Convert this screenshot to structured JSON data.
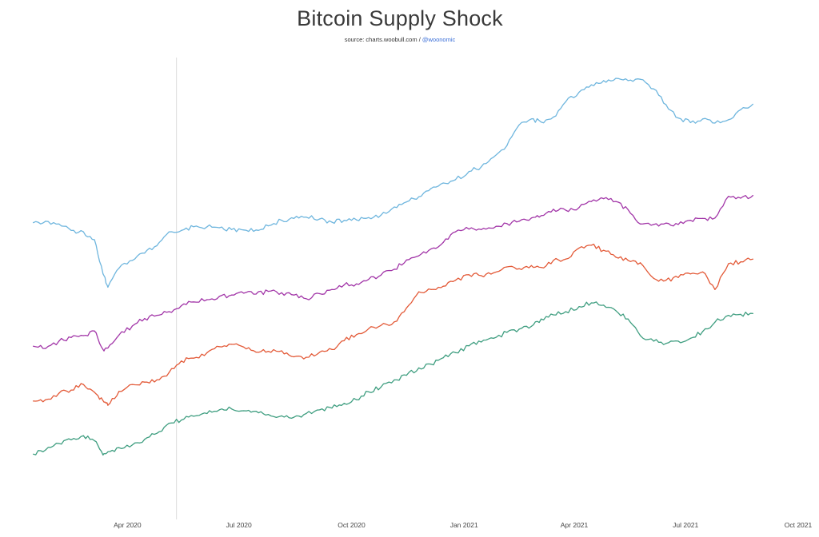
{
  "chart_data": {
    "type": "line",
    "title": "Bitcoin Supply Shock",
    "subtitle_source": "source: charts.woobull.com /",
    "subtitle_handle": "@woonomic",
    "xlabel": "",
    "ylabel": "",
    "grid": false,
    "legend": "none",
    "x_ticks": [
      "Apr 2020",
      "Jul 2020",
      "Oct 2020",
      "Jan 2021",
      "Apr 2021",
      "Jul 2021",
      "Oct 2021"
    ],
    "x_range": [
      "2020-01-12",
      "2021-10-01"
    ],
    "y_range": [
      0,
      100
    ],
    "marker_line_x": "2020-05-11",
    "series": [
      {
        "color": "#6fb6de",
        "x": [
          "2020-01-15",
          "2020-01-25",
          "2020-02-05",
          "2020-02-15",
          "2020-02-25",
          "2020-03-05",
          "2020-03-12",
          "2020-03-16",
          "2020-03-25",
          "2020-04-05",
          "2020-04-15",
          "2020-04-25",
          "2020-05-05",
          "2020-05-15",
          "2020-05-25",
          "2020-06-05",
          "2020-06-15",
          "2020-06-25",
          "2020-07-05",
          "2020-07-15",
          "2020-07-25",
          "2020-08-05",
          "2020-08-15",
          "2020-08-25",
          "2020-09-05",
          "2020-09-15",
          "2020-09-25",
          "2020-10-05",
          "2020-10-15",
          "2020-10-25",
          "2020-11-05",
          "2020-11-15",
          "2020-11-25",
          "2020-12-05",
          "2020-12-15",
          "2020-12-25",
          "2021-01-05",
          "2021-01-15",
          "2021-01-25",
          "2021-02-05",
          "2021-02-15",
          "2021-02-25",
          "2021-03-05",
          "2021-03-15",
          "2021-03-25",
          "2021-04-05",
          "2021-04-15",
          "2021-04-25",
          "2021-05-05",
          "2021-05-15",
          "2021-05-25",
          "2021-06-05",
          "2021-06-15",
          "2021-06-25",
          "2021-07-05",
          "2021-07-15",
          "2021-07-25",
          "2021-08-05",
          "2021-08-15",
          "2021-08-25"
        ],
        "values": [
          63.5,
          63.8,
          63.2,
          61.8,
          61.5,
          59.8,
          52.4,
          49.5,
          53.6,
          55.3,
          56.9,
          58.5,
          61.5,
          61.8,
          62.6,
          62.6,
          62.4,
          62.0,
          61.9,
          61.9,
          62.8,
          64.0,
          64.4,
          64.7,
          64.3,
          63.6,
          64.0,
          64.1,
          64.6,
          65.1,
          66.9,
          68.0,
          69.1,
          70.9,
          72.1,
          72.8,
          74.6,
          75.6,
          77.7,
          80.2,
          84.7,
          86.0,
          85.3,
          86.4,
          89.7,
          91.8,
          93.4,
          94.3,
          94.8,
          94.3,
          94.6,
          92.5,
          89.1,
          86.2,
          85.2,
          86.0,
          85.1,
          85.8,
          88.0,
          89.2
        ]
      },
      {
        "color": "#a236a8",
        "x": [
          "2020-01-15",
          "2020-01-25",
          "2020-02-05",
          "2020-02-15",
          "2020-02-25",
          "2020-03-05",
          "2020-03-12",
          "2020-03-16",
          "2020-03-25",
          "2020-04-05",
          "2020-04-15",
          "2020-04-25",
          "2020-05-05",
          "2020-05-15",
          "2020-05-25",
          "2020-06-05",
          "2020-06-15",
          "2020-06-25",
          "2020-07-05",
          "2020-07-15",
          "2020-07-25",
          "2020-08-05",
          "2020-08-15",
          "2020-08-25",
          "2020-09-05",
          "2020-09-15",
          "2020-09-25",
          "2020-10-05",
          "2020-10-15",
          "2020-10-25",
          "2020-11-05",
          "2020-11-15",
          "2020-11-25",
          "2020-12-05",
          "2020-12-15",
          "2020-12-25",
          "2021-01-05",
          "2021-01-15",
          "2021-01-25",
          "2021-02-05",
          "2021-02-15",
          "2021-02-25",
          "2021-03-05",
          "2021-03-15",
          "2021-03-25",
          "2021-04-05",
          "2021-04-15",
          "2021-04-25",
          "2021-05-05",
          "2021-05-15",
          "2021-05-25",
          "2021-06-05",
          "2021-06-15",
          "2021-06-25",
          "2021-07-05",
          "2021-07-15",
          "2021-07-25",
          "2021-08-05",
          "2021-08-15",
          "2021-08-25"
        ],
        "values": [
          36.7,
          36.2,
          37.8,
          38.6,
          39.0,
          40.0,
          36.0,
          36.3,
          39.1,
          41.1,
          42.7,
          43.4,
          44.2,
          45.5,
          46.3,
          46.8,
          47.5,
          47.8,
          48.2,
          48.0,
          48.6,
          48.3,
          47.8,
          47.0,
          48.1,
          49.0,
          50.0,
          50.2,
          51.2,
          52.1,
          53.4,
          55.4,
          56.3,
          57.8,
          59.2,
          61.5,
          62.1,
          62.0,
          62.3,
          63.3,
          63.8,
          64.5,
          65.0,
          66.4,
          66.2,
          66.8,
          68.1,
          68.7,
          68.1,
          66.3,
          63.2,
          63.1,
          63.4,
          63.1,
          64.0,
          64.4,
          64.5,
          69.2,
          68.8,
          69.4
        ]
      },
      {
        "color": "#e35a38",
        "x": [
          "2020-01-15",
          "2020-01-25",
          "2020-02-05",
          "2020-02-15",
          "2020-02-25",
          "2020-03-05",
          "2020-03-12",
          "2020-03-16",
          "2020-03-25",
          "2020-04-05",
          "2020-04-15",
          "2020-04-25",
          "2020-05-05",
          "2020-05-15",
          "2020-05-25",
          "2020-06-05",
          "2020-06-15",
          "2020-06-25",
          "2020-07-05",
          "2020-07-15",
          "2020-07-25",
          "2020-08-05",
          "2020-08-15",
          "2020-08-25",
          "2020-09-05",
          "2020-09-15",
          "2020-09-25",
          "2020-10-05",
          "2020-10-15",
          "2020-10-25",
          "2020-11-05",
          "2020-11-15",
          "2020-11-25",
          "2020-12-05",
          "2020-12-15",
          "2020-12-25",
          "2021-01-05",
          "2021-01-15",
          "2021-01-25",
          "2021-02-05",
          "2021-02-15",
          "2021-02-25",
          "2021-03-05",
          "2021-03-15",
          "2021-03-25",
          "2021-04-05",
          "2021-04-15",
          "2021-04-25",
          "2021-05-05",
          "2021-05-15",
          "2021-05-25",
          "2021-06-05",
          "2021-06-15",
          "2021-06-25",
          "2021-07-05",
          "2021-07-15",
          "2021-07-25",
          "2021-08-05",
          "2021-08-15",
          "2021-08-25"
        ],
        "values": [
          24.8,
          25.1,
          26.5,
          27.2,
          28.4,
          26.7,
          24.9,
          23.9,
          26.9,
          28.4,
          28.9,
          29.4,
          31.0,
          33.5,
          34.1,
          35.3,
          36.6,
          37.1,
          36.5,
          35.4,
          35.6,
          35.7,
          34.4,
          34.3,
          35.4,
          36.0,
          37.9,
          39.2,
          40.5,
          41.2,
          42.0,
          45.0,
          48.5,
          49.0,
          49.7,
          51.0,
          52.2,
          52.0,
          52.6,
          53.9,
          53.5,
          54.2,
          53.8,
          55.3,
          55.6,
          58.0,
          58.6,
          57.5,
          56.0,
          55.3,
          54.8,
          51.4,
          51.0,
          51.6,
          52.4,
          52.8,
          49.0,
          54.6,
          55.0,
          55.6
        ]
      },
      {
        "color": "#3f9e80",
        "x": [
          "2020-01-15",
          "2020-01-25",
          "2020-02-05",
          "2020-02-15",
          "2020-02-25",
          "2020-03-05",
          "2020-03-12",
          "2020-03-16",
          "2020-03-25",
          "2020-04-05",
          "2020-04-15",
          "2020-04-25",
          "2020-05-05",
          "2020-05-15",
          "2020-05-25",
          "2020-06-05",
          "2020-06-15",
          "2020-06-25",
          "2020-07-05",
          "2020-07-15",
          "2020-07-25",
          "2020-08-05",
          "2020-08-15",
          "2020-08-25",
          "2020-09-05",
          "2020-09-15",
          "2020-09-25",
          "2020-10-05",
          "2020-10-15",
          "2020-10-25",
          "2020-11-05",
          "2020-11-15",
          "2020-11-25",
          "2020-12-05",
          "2020-12-15",
          "2020-12-25",
          "2021-01-05",
          "2021-01-15",
          "2021-01-25",
          "2021-02-05",
          "2021-02-15",
          "2021-02-25",
          "2021-03-05",
          "2021-03-15",
          "2021-03-25",
          "2021-04-05",
          "2021-04-15",
          "2021-04-25",
          "2021-05-05",
          "2021-05-15",
          "2021-05-25",
          "2021-06-05",
          "2021-06-15",
          "2021-06-25",
          "2021-07-05",
          "2021-07-15",
          "2021-07-25",
          "2021-08-05",
          "2021-08-15",
          "2021-08-25"
        ],
        "values": [
          13.3,
          14.2,
          15.6,
          16.4,
          17.3,
          16.2,
          13.1,
          13.8,
          14.7,
          15.3,
          16.5,
          17.8,
          20.0,
          20.7,
          21.5,
          22.1,
          22.9,
          23.1,
          22.7,
          22.6,
          21.9,
          21.6,
          21.3,
          22.1,
          22.9,
          23.3,
          24.3,
          25.1,
          26.8,
          27.8,
          29.4,
          30.4,
          32.0,
          32.8,
          34.2,
          35.3,
          36.8,
          37.6,
          38.4,
          39.7,
          40.4,
          41.0,
          42.6,
          43.5,
          44.2,
          45.3,
          46.1,
          45.6,
          44.4,
          42.6,
          39.0,
          37.8,
          37.3,
          37.8,
          38.4,
          39.9,
          41.9,
          43.4,
          43.6,
          43.8
        ]
      }
    ]
  }
}
